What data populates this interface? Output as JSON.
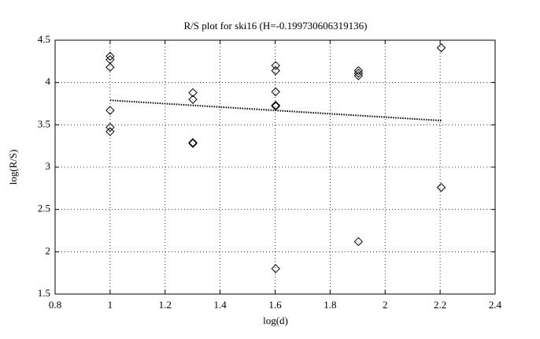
{
  "chart_data": {
    "type": "scatter",
    "title": "R/S plot for ski16 (H=-0.199730606319136)",
    "x_label": "log(d)",
    "y_label": "log(R/S)",
    "xlim": [
      0.8,
      2.4
    ],
    "xticks": [
      0.8,
      1,
      1.2,
      1.4,
      1.6,
      1.8,
      2,
      2.2,
      2.4
    ],
    "ylim": [
      1.5,
      4.5
    ],
    "yticks": [
      1.5,
      2,
      2.5,
      3,
      3.5,
      4,
      4.5
    ],
    "grid": true,
    "series": [
      {
        "type": "scatter",
        "marker": "diamond",
        "color": "#000000",
        "x": [
          1,
          1,
          1,
          1,
          1,
          1,
          1.301,
          1.301,
          1.301,
          1.301,
          1.602,
          1.602,
          1.602,
          1.602,
          1.602,
          1.602,
          1.903,
          1.903,
          1.903,
          1.903,
          2.204,
          2.204
        ],
        "y": [
          4.31,
          4.27,
          4.18,
          3.67,
          3.47,
          3.42,
          3.88,
          3.8,
          3.29,
          3.28,
          4.2,
          4.14,
          3.89,
          3.73,
          3.72,
          1.8,
          4.14,
          4.11,
          4.08,
          2.12,
          4.41,
          2.76
        ]
      },
      {
        "type": "line",
        "linestyle": "dotted",
        "color": "#000000",
        "x": [
          1,
          2.204
        ],
        "y": [
          3.79,
          3.55
        ]
      }
    ]
  }
}
